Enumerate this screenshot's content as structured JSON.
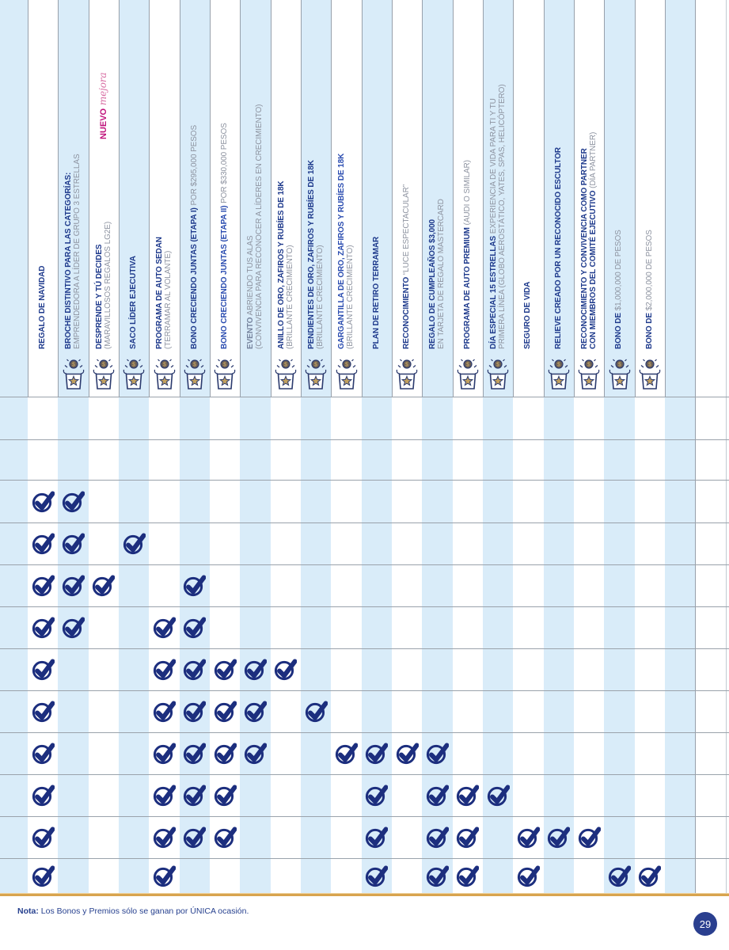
{
  "page": {
    "note_bold": "Nota:",
    "note_text": " Los Bonos y Premios sólo se ganan por ÚNICA ocasión.",
    "page_number": "29"
  },
  "colors": {
    "title_navy": "#1e3a8c",
    "title_bright_blue": "#2a4cb0",
    "subtitle_gray": "#8d93a0",
    "muted_blue": "#76849e",
    "check_navy": "#1c2e7e",
    "stripe_blue": "#d9ecf9",
    "row_border_gray": "#9aa2ab",
    "gold_rule": "#d8a44e",
    "nuevo_pink": "#c0147c",
    "mejora_pink": "#d86fa4",
    "badge_navy": "#2a3f8f",
    "icon_outline_navy": "#2b3a6e",
    "icon_star_gold": "#c2a05e",
    "icon_coin_brown": "#6a5f57"
  },
  "new_badge": {
    "bold": "NUEVO",
    "italic": " mejora",
    "column": 3
  },
  "icon_name": "gift-prize-icon",
  "check_name": "check-icon",
  "columns": [
    {
      "n": 1,
      "icon": false,
      "lines": [
        [
          {
            "b": "REGALO DE NAVIDAD"
          }
        ]
      ]
    },
    {
      "n": 2,
      "icon": true,
      "lines": [
        [
          {
            "b": "BROCHE DISTINTIVO PARA LAS CATEGORÍAS:"
          }
        ],
        [
          {
            "r": "EMPRENDEDORA A LÍDER DE GRUPO 3 ESTRELLAS"
          }
        ]
      ]
    },
    {
      "n": 3,
      "icon": true,
      "nuevo": true,
      "lines": [
        [
          {
            "b": "DESPRENDE Y TÚ DECIDES"
          }
        ],
        [
          {
            "r": "(MARAVILLOSOS REGALOS LG2E)"
          }
        ]
      ]
    },
    {
      "n": 4,
      "icon": true,
      "lines": [
        [
          {
            "b": "SACO LÍDER EJECUTIVA"
          }
        ]
      ]
    },
    {
      "n": 5,
      "icon": true,
      "lines": [
        [
          {
            "b": "PROGRAMA DE AUTO SEDAN"
          }
        ],
        [
          {
            "r": "(TERRAMAR AL VOLANTE)"
          }
        ]
      ]
    },
    {
      "n": 6,
      "icon": true,
      "lines": [
        [
          {
            "b": "BONO CRECIENDO JUNTAS (ETAPA I)"
          },
          {
            "r": " POR $295,000 PESOS"
          }
        ]
      ]
    },
    {
      "n": 7,
      "icon": true,
      "bright": true,
      "lines": [
        [
          {
            "b": "BONO CRECIENDO JUNTAS (ETAPA II)"
          },
          {
            "r": " POR $330,000 PESOS"
          }
        ]
      ]
    },
    {
      "n": 8,
      "icon": false,
      "muted": true,
      "lines": [
        [
          {
            "b": "EVENTO"
          },
          {
            "r": " ABRIENDO TUS ALAS"
          }
        ],
        [
          {
            "r": "(CONVIVENCIA PARA RECONOCER A LÍDERES EN CRECIMIENTO)"
          }
        ]
      ]
    },
    {
      "n": 9,
      "icon": true,
      "lines": [
        [
          {
            "b": "ANILLO DE ORO, ZAFIROS Y RUBÍES DE 18K"
          }
        ],
        [
          {
            "r": "(BRILLANTE CRECIMIENTO)"
          }
        ]
      ]
    },
    {
      "n": 10,
      "icon": true,
      "lines": [
        [
          {
            "b": "PENDIENTES DE ORO, ZAFIROS Y RUBÍES DE 18K"
          }
        ],
        [
          {
            "r": "(BRILLANTE CRECIMIENTO)"
          }
        ]
      ]
    },
    {
      "n": 11,
      "icon": true,
      "bright": true,
      "lines": [
        [
          {
            "b": "GARGANTILLA DE ORO, ZAFIROS Y RUBÍES DE 18K"
          }
        ],
        [
          {
            "r": "(BRILLANTE CRECIMIENTO)"
          }
        ]
      ]
    },
    {
      "n": 12,
      "icon": false,
      "lines": [
        [
          {
            "b": "PLAN DE RETIRO TERRAMAR"
          }
        ]
      ]
    },
    {
      "n": 13,
      "icon": true,
      "lines": [
        [
          {
            "b": "RECONOCIMIENTO"
          },
          {
            "r": " “LUCE ESPECTACULAR”"
          }
        ]
      ]
    },
    {
      "n": 14,
      "icon": false,
      "lines": [
        [
          {
            "b": "REGALO DE CUMPLEAÑOS $3,000"
          }
        ],
        [
          {
            "r": "EN TARJETA DE REGALO MASTERCARD"
          }
        ]
      ]
    },
    {
      "n": 15,
      "icon": true,
      "lines": [
        [
          {
            "b": "PROGRAMA DE AUTO PREMIUM"
          },
          {
            "r": " (AUDI O SIMILAR)"
          }
        ]
      ]
    },
    {
      "n": 16,
      "icon": true,
      "lines": [
        [
          {
            "b": "DÍA ESPECIAL 15 ESTRELLAS"
          },
          {
            "r": " EXPERIENCIA DE VIDA PARA TI Y TU"
          }
        ],
        [
          {
            "r": "PRIMERA LÍNEA (GLOBO AEROSTÁTICO, YATES, SPAS, HELICÓPTERO)"
          }
        ]
      ]
    },
    {
      "n": 17,
      "icon": false,
      "lines": [
        [
          {
            "b": "SEGURO DE VIDA"
          }
        ]
      ]
    },
    {
      "n": 18,
      "icon": true,
      "lines": [
        [
          {
            "b": "RELIEVE CREADO POR UN RECONOCIDO ESCULTOR"
          }
        ]
      ]
    },
    {
      "n": 19,
      "icon": true,
      "lines": [
        [
          {
            "b": "RECONOCIMIENTO Y CONVIVENCIA COMO PARTNER"
          }
        ],
        [
          {
            "b": "CON MIEMBROS DEL COMITÉ EJECUTIVO"
          },
          {
            "r": " (DÍA PARTNER)"
          }
        ]
      ]
    },
    {
      "n": 20,
      "icon": true,
      "lines": [
        [
          {
            "b": "BONO DE"
          },
          {
            "r": " $1,000,000 DE PESOS"
          }
        ]
      ]
    },
    {
      "n": 21,
      "icon": true,
      "lines": [
        [
          {
            "b": "BONO DE"
          },
          {
            "r": " $2,000,000 DE PESOS"
          }
        ]
      ]
    }
  ],
  "grid": {
    "rows": [
      {
        "checks": []
      },
      {
        "checks": []
      },
      {
        "checks": [
          1,
          2
        ]
      },
      {
        "checks": [
          1,
          2,
          4
        ]
      },
      {
        "checks": [
          1,
          2,
          3,
          6
        ]
      },
      {
        "checks": [
          1,
          2,
          5,
          6
        ]
      },
      {
        "checks": [
          1,
          5,
          6,
          7,
          8,
          9
        ]
      },
      {
        "checks": [
          1,
          5,
          6,
          7,
          8,
          10
        ]
      },
      {
        "checks": [
          1,
          5,
          6,
          7,
          8,
          11,
          12,
          13,
          14
        ]
      },
      {
        "checks": [
          1,
          5,
          6,
          7,
          12,
          14,
          15,
          16
        ]
      },
      {
        "checks": [
          1,
          5,
          6,
          7,
          12,
          14,
          15,
          17,
          18,
          19
        ]
      },
      {
        "checks": [
          1,
          5,
          12,
          14,
          15,
          17,
          20,
          21
        ]
      }
    ]
  }
}
